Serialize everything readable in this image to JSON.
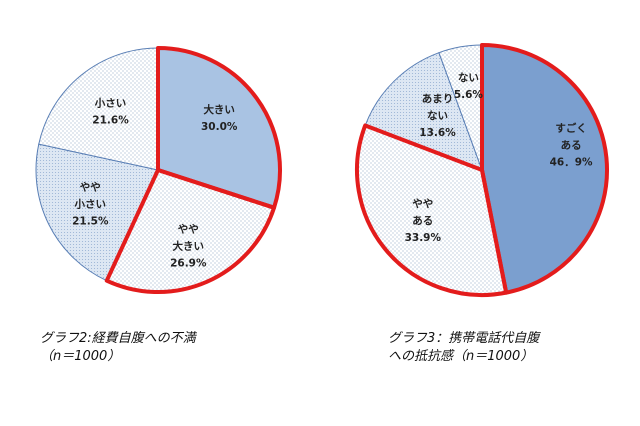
{
  "chart_data": [
    {
      "type": "pie",
      "caption_lines": [
        "グラフ2:経費自腹への不満",
        "（n＝1000）"
      ],
      "slices": [
        {
          "label_lines": [
            "大きい"
          ],
          "value_label": "30.0%",
          "value": 30.0,
          "fill": "#a9c3e3",
          "pattern": "solid",
          "highlighted": true
        },
        {
          "label_lines": [
            "やや",
            "大きい"
          ],
          "value_label": "26.9%",
          "value": 26.9,
          "fill": "#ffffff",
          "pattern": "dots",
          "highlighted": true
        },
        {
          "label_lines": [
            "やや",
            "小さい"
          ],
          "value_label": "21.5%",
          "value": 21.5,
          "fill": "#dde7f3",
          "pattern": "fine",
          "highlighted": false
        },
        {
          "label_lines": [
            "小さい"
          ],
          "value_label": "21.6%",
          "value": 21.6,
          "fill": "#ffffff",
          "pattern": "dots",
          "highlighted": false
        }
      ]
    },
    {
      "type": "pie",
      "caption_lines": [
        "グラフ3：携帯電話代自腹",
        "への抵抗感（n＝1000）"
      ],
      "slices": [
        {
          "label_lines": [
            "すごく",
            "ある"
          ],
          "value_label": "46．9%",
          "value": 46.9,
          "fill": "#7b9fcf",
          "pattern": "solid",
          "highlighted": true
        },
        {
          "label_lines": [
            "やや",
            "ある"
          ],
          "value_label": "33.9%",
          "value": 33.9,
          "fill": "#ffffff",
          "pattern": "dots",
          "highlighted": true
        },
        {
          "label_lines": [
            "あまり",
            "ない"
          ],
          "value_label": "13.6%",
          "value": 13.6,
          "fill": "#dde7f3",
          "pattern": "fine",
          "highlighted": false
        },
        {
          "label_lines": [
            "ない"
          ],
          "value_label": "5.6%",
          "value": 5.6,
          "fill": "#ffffff",
          "pattern": "dots",
          "highlighted": false
        }
      ]
    }
  ],
  "colors": {
    "highlight_outline": "#e31c1c",
    "slice_border": "#5a7fb5",
    "dot_color": "#9fb2cc",
    "fine_hatch": "#94aed2"
  }
}
